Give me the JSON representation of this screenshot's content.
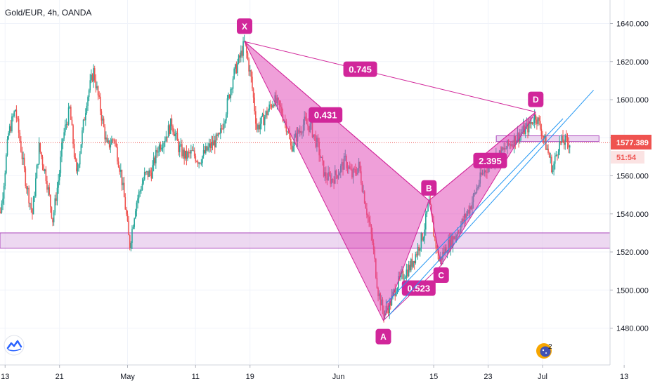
{
  "title": "Gold/EUR, 4h, OANDA",
  "colors": {
    "up": "#26a69a",
    "down": "#ef5350",
    "pattern_fill": "#e040b4",
    "pattern_label": "#d1269a",
    "zone_fill": "#e1bee7",
    "zone_stroke": "#ab47bc",
    "channel": "#2196f3",
    "price_badge": "#ef5350",
    "price_line": "#ef5350"
  },
  "icons": {
    "logo": "tradingview-logo-icon",
    "events": "economic-events-icon"
  },
  "chart_data": {
    "type": "candlestick",
    "timeframe": "4h",
    "ylim": [
      1468,
      1650
    ],
    "y_ticks": [
      1480,
      1500,
      1520,
      1540,
      1560,
      1580,
      1600,
      1620,
      1640
    ],
    "y_tick_labels": [
      "1480.000",
      "1500.000",
      "1520.000",
      "1540.000",
      "1560.000",
      "1580.000",
      "1600.000",
      "1620.000",
      "1640.000"
    ],
    "x_tick_labels": [
      "13",
      "21",
      "May",
      "11",
      "19",
      "Jun",
      "15",
      "23",
      "Jul",
      "13"
    ],
    "x_tick_days": [
      -18,
      -10,
      0,
      10,
      18,
      31,
      45,
      53,
      61,
      73
    ],
    "xlim_days": [
      -19.5,
      85
    ],
    "price_path": [
      [
        -19.5,
        1530
      ],
      [
        -18.5,
        1545
      ],
      [
        -17.5,
        1582
      ],
      [
        -16.5,
        1595
      ],
      [
        -15,
        1558
      ],
      [
        -14,
        1540
      ],
      [
        -13,
        1575
      ],
      [
        -12,
        1560
      ],
      [
        -11,
        1537
      ],
      [
        -10,
        1562
      ],
      [
        -9.5,
        1580
      ],
      [
        -8.5,
        1595
      ],
      [
        -7.5,
        1560
      ],
      [
        -6,
        1600
      ],
      [
        -5,
        1615
      ],
      [
        -4,
        1595
      ],
      [
        -3,
        1575
      ],
      [
        -2,
        1580
      ],
      [
        -1,
        1562
      ],
      [
        -0.2,
        1540
      ],
      [
        0.3,
        1523
      ],
      [
        1.2,
        1545
      ],
      [
        2.5,
        1560
      ],
      [
        3.5,
        1562
      ],
      [
        4.5,
        1575
      ],
      [
        5.5,
        1580
      ],
      [
        6.5,
        1588
      ],
      [
        7.5,
        1575
      ],
      [
        8.5,
        1570
      ],
      [
        9.5,
        1572
      ],
      [
        10.5,
        1568
      ],
      [
        12,
        1575
      ],
      [
        13.5,
        1580
      ],
      [
        14.5,
        1595
      ],
      [
        15.5,
        1612
      ],
      [
        16.5,
        1622
      ],
      [
        17.2,
        1630
      ],
      [
        18.2,
        1610
      ],
      [
        19,
        1585
      ],
      [
        20,
        1590
      ],
      [
        21.5,
        1600
      ],
      [
        22.5,
        1595
      ],
      [
        23.5,
        1585
      ],
      [
        24,
        1575
      ],
      [
        25,
        1582
      ],
      [
        26,
        1588
      ],
      [
        27,
        1585
      ],
      [
        28,
        1575
      ],
      [
        29,
        1560
      ],
      [
        30,
        1558
      ],
      [
        31,
        1562
      ],
      [
        32,
        1568
      ],
      [
        33,
        1560
      ],
      [
        34,
        1565
      ],
      [
        35,
        1545
      ],
      [
        36,
        1525
      ],
      [
        36.8,
        1500
      ],
      [
        37.6,
        1488
      ],
      [
        38.5,
        1492
      ],
      [
        39.5,
        1502
      ],
      [
        40.5,
        1508
      ],
      [
        41.5,
        1512
      ],
      [
        42.5,
        1520
      ],
      [
        43.5,
        1530
      ],
      [
        44.3,
        1546
      ],
      [
        45,
        1530
      ],
      [
        45.8,
        1515
      ],
      [
        46.8,
        1522
      ],
      [
        48,
        1528
      ],
      [
        49,
        1534
      ],
      [
        50.5,
        1545
      ],
      [
        52,
        1560
      ],
      [
        53.5,
        1568
      ],
      [
        55,
        1572
      ],
      [
        56.5,
        1578
      ],
      [
        58,
        1583
      ],
      [
        59,
        1586
      ],
      [
        60,
        1592
      ],
      [
        61,
        1582
      ],
      [
        62,
        1570
      ],
      [
        62.5,
        1563
      ],
      [
        63.3,
        1576
      ],
      [
        64,
        1578
      ],
      [
        65,
        1577.4
      ]
    ],
    "horizontal_zones": [
      {
        "x_start_day": -19.5,
        "x_end_day": 85,
        "y_from": 1522,
        "y_to": 1530
      },
      {
        "x_start_day": 54.2,
        "x_end_day": 69.3,
        "y_from": 1578,
        "y_to": 1581
      }
    ],
    "harmonic_pattern": {
      "points": [
        {
          "label": "X",
          "day": 17.2,
          "price": 1630.5
        },
        {
          "label": "A",
          "day": 37.6,
          "price": 1484
        },
        {
          "label": "B",
          "day": 44.3,
          "price": 1547
        },
        {
          "label": "C",
          "day": 46.1,
          "price": 1513
        },
        {
          "label": "D",
          "day": 60.0,
          "price": 1593.5
        }
      ],
      "ratios": [
        {
          "value": "0.745",
          "day": 34.2,
          "price": 1616
        },
        {
          "value": "0.431",
          "day": 29.1,
          "price": 1592
        },
        {
          "value": "0.523",
          "day": 42.8,
          "price": 1501
        },
        {
          "value": "2.395",
          "day": 53.3,
          "price": 1568
        }
      ]
    },
    "channel_lines": [
      {
        "from_day": 38.5,
        "from_price": 1487,
        "to_day": 68.5,
        "to_price": 1605
      },
      {
        "from_day": 38.0,
        "from_price": 1493,
        "to_day": 64.0,
        "to_price": 1590
      }
    ],
    "last_price": 1577.389,
    "last_price_label": "1577.389",
    "countdown": "51:54",
    "event_count": "2"
  }
}
